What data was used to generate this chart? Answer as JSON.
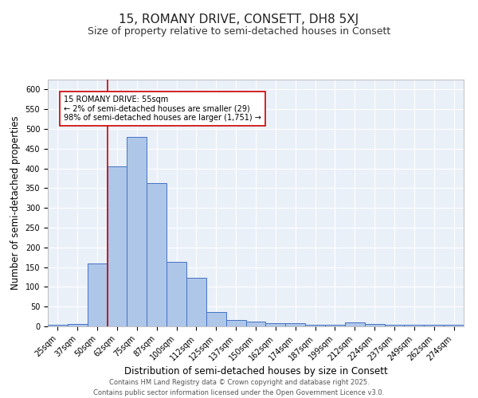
{
  "title_line1": "15, ROMANY DRIVE, CONSETT, DH8 5XJ",
  "title_line2": "Size of property relative to semi-detached houses in Consett",
  "xlabel": "Distribution of semi-detached houses by size in Consett",
  "ylabel": "Number of semi-detached properties",
  "categories": [
    "25sqm",
    "37sqm",
    "50sqm",
    "62sqm",
    "75sqm",
    "87sqm",
    "100sqm",
    "112sqm",
    "125sqm",
    "137sqm",
    "150sqm",
    "162sqm",
    "174sqm",
    "187sqm",
    "199sqm",
    "212sqm",
    "224sqm",
    "237sqm",
    "249sqm",
    "262sqm",
    "274sqm"
  ],
  "values": [
    5,
    7,
    160,
    405,
    480,
    362,
    163,
    123,
    36,
    17,
    13,
    9,
    8,
    4,
    4,
    10,
    7,
    5,
    4,
    5,
    4
  ],
  "bar_color": "#aec6e8",
  "bar_edge_color": "#4472c4",
  "vline_color": "#cc0000",
  "vline_x_idx": 2.5,
  "annotation_text": "15 ROMANY DRIVE: 55sqm\n← 2% of semi-detached houses are smaller (29)\n98% of semi-detached houses are larger (1,751) →",
  "annotation_box_color": "#ffffff",
  "annotation_box_edge": "#cc0000",
  "ylim": [
    0,
    625
  ],
  "yticks": [
    0,
    50,
    100,
    150,
    200,
    250,
    300,
    350,
    400,
    450,
    500,
    550,
    600
  ],
  "bg_color": "#eaf0f8",
  "grid_color": "#ffffff",
  "footer_line1": "Contains HM Land Registry data © Crown copyright and database right 2025.",
  "footer_line2": "Contains public sector information licensed under the Open Government Licence v3.0.",
  "title_fontsize": 11,
  "subtitle_fontsize": 9,
  "axis_label_fontsize": 8.5,
  "tick_fontsize": 7,
  "annotation_fontsize": 7,
  "footer_fontsize": 6
}
